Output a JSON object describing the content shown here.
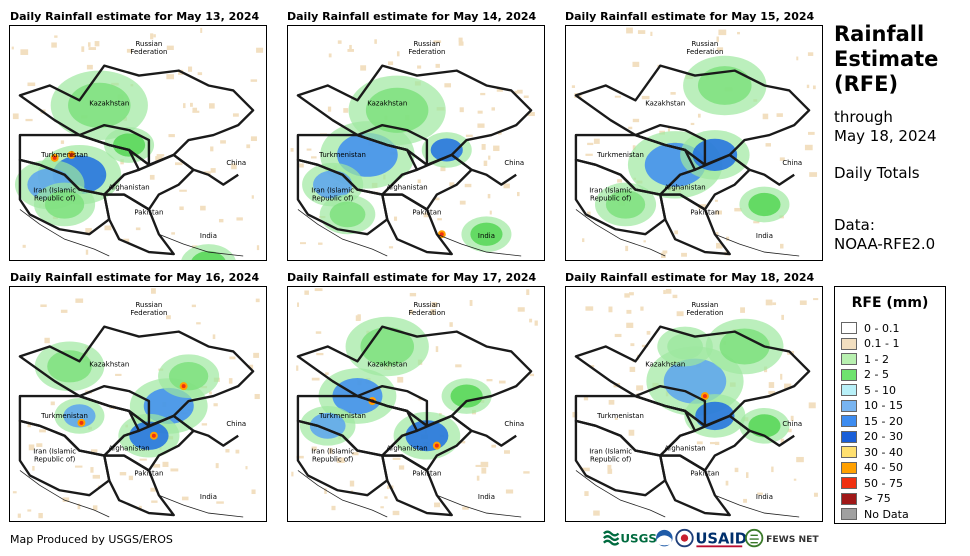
{
  "panels": [
    {
      "title": "Daily Rainfall estimate for May 13, 2024",
      "rain": [
        [
          70,
          150,
          30,
          "#1e6fe0"
        ],
        [
          40,
          160,
          25,
          "#5aa3ee"
        ],
        [
          90,
          80,
          35,
          "#7ee07e"
        ],
        [
          120,
          120,
          18,
          "#55d655"
        ],
        [
          55,
          180,
          22,
          "#7ee07e"
        ],
        [
          200,
          240,
          20,
          "#55d655"
        ]
      ],
      "hot": [
        [
          45,
          133
        ],
        [
          62,
          130
        ]
      ]
    },
    {
      "title": "Daily Rainfall estimate for May 14, 2024",
      "rain": [
        [
          80,
          130,
          34,
          "#3d8cf0"
        ],
        [
          45,
          160,
          22,
          "#5aa3ee"
        ],
        [
          110,
          85,
          35,
          "#7ee07e"
        ],
        [
          160,
          125,
          18,
          "#1e6fe0"
        ],
        [
          60,
          190,
          20,
          "#7ee07e"
        ],
        [
          200,
          210,
          18,
          "#55d655"
        ]
      ],
      "hot": [
        [
          155,
          210
        ]
      ]
    },
    {
      "title": "Daily Rainfall estimate for May 15, 2024",
      "rain": [
        [
          110,
          140,
          34,
          "#3d8cf0"
        ],
        [
          150,
          130,
          25,
          "#1e6fe0"
        ],
        [
          60,
          180,
          22,
          "#7ee07e"
        ],
        [
          160,
          60,
          30,
          "#7ee07e"
        ],
        [
          200,
          180,
          18,
          "#55d655"
        ]
      ],
      "hot": []
    },
    {
      "title": "Daily Rainfall estimate for May 16, 2024",
      "rain": [
        [
          160,
          120,
          28,
          "#3d8cf0"
        ],
        [
          140,
          150,
          22,
          "#1e6fe0"
        ],
        [
          70,
          130,
          18,
          "#5aa3ee"
        ],
        [
          60,
          80,
          25,
          "#7ee07e"
        ],
        [
          180,
          90,
          22,
          "#7ee07e"
        ]
      ],
      "hot": [
        [
          72,
          137
        ],
        [
          145,
          150
        ],
        [
          175,
          100
        ]
      ]
    },
    {
      "title": "Daily Rainfall estimate for May 17, 2024",
      "rain": [
        [
          70,
          110,
          28,
          "#3d8cf0"
        ],
        [
          140,
          150,
          24,
          "#1e6fe0"
        ],
        [
          100,
          60,
          30,
          "#7ee07e"
        ],
        [
          40,
          140,
          20,
          "#5aa3ee"
        ],
        [
          180,
          110,
          18,
          "#55d655"
        ]
      ],
      "hot": [
        [
          85,
          115
        ],
        [
          150,
          160
        ]
      ]
    },
    {
      "title": "Daily Rainfall estimate for May 18, 2024",
      "rain": [
        [
          130,
          95,
          35,
          "#5aa3ee"
        ],
        [
          180,
          60,
          28,
          "#7ee07e"
        ],
        [
          150,
          130,
          22,
          "#1e6fe0"
        ],
        [
          120,
          60,
          20,
          "#9ee8a0"
        ],
        [
          200,
          140,
          18,
          "#55d655"
        ]
      ],
      "hot": [
        [
          140,
          110
        ]
      ]
    }
  ],
  "map_labels": {
    "russia_1": "Russian",
    "russia_2": "Federation",
    "kazakhstan": "Kazakhstan",
    "turkmenistan": "Turkmenistan",
    "china": "China",
    "afghanistan": "Afghanistan",
    "iran_1": "Iran  (Islamic",
    "iran_2": "Republic of)",
    "pakistan": "Pakistan",
    "india": "India"
  },
  "sidebar": {
    "title_line1": "Rainfall",
    "title_line2": "Estimate",
    "title_line3": "(RFE)",
    "through": "through",
    "date": "May 18, 2024",
    "totals": "Daily Totals",
    "data_label": "Data:",
    "data_source": "NOAA-RFE2.0"
  },
  "legend": {
    "title": "RFE (mm)",
    "items": [
      {
        "label": "0 - 0.1",
        "color": "#ffffff"
      },
      {
        "label": "0.1 - 1",
        "color": "#f2dfc0"
      },
      {
        "label": "1 - 2",
        "color": "#b8f0b0"
      },
      {
        "label": "2 - 5",
        "color": "#6ee26e"
      },
      {
        "label": "5 - 10",
        "color": "#b8f0f8"
      },
      {
        "label": "10 - 15",
        "color": "#78b4f0"
      },
      {
        "label": "15 - 20",
        "color": "#3d8cf0"
      },
      {
        "label": "20 - 30",
        "color": "#1a5fd8"
      },
      {
        "label": "30 - 40",
        "color": "#ffe070"
      },
      {
        "label": "40 - 50",
        "color": "#ffa000"
      },
      {
        "label": "50 - 75",
        "color": "#f03010"
      },
      {
        "label": "> 75",
        "color": "#a01818"
      },
      {
        "label": "No Data",
        "color": "#a0a0a0"
      }
    ]
  },
  "credit": "Map Produced by USGS/EROS",
  "logos": {
    "usgs": "USGS",
    "usaid": "USAID",
    "fews": "FEWS NET"
  }
}
